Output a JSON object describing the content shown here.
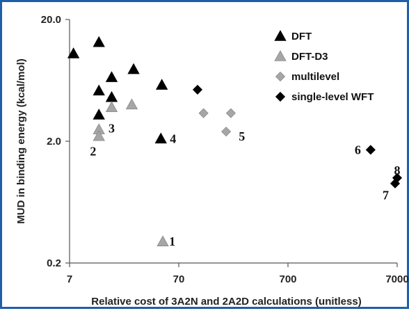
{
  "chart_data": {
    "type": "scatter",
    "xscale": "log",
    "yscale": "log",
    "xlim": [
      7,
      7000
    ],
    "ylim": [
      0.2,
      20.0
    ],
    "xticks": [
      "7",
      "70",
      "700",
      "7000"
    ],
    "yticks": [
      "0.2",
      "2.0",
      "20.0"
    ],
    "xlabel": "Relative cost of 3A2N and 2A2D calculations (unitless)",
    "ylabel": "MUD in binding energy (kcal/mol)",
    "grid": false,
    "legend_position": "top-right",
    "series": [
      {
        "name": "DFT",
        "marker": "triangle",
        "color": "#000000",
        "points": [
          {
            "x": 7.6,
            "y": 10.5
          },
          {
            "x": 13,
            "y": 13.0
          },
          {
            "x": 13,
            "y": 5.2
          },
          {
            "x": 13,
            "y": 3.3
          },
          {
            "x": 17,
            "y": 6.7
          },
          {
            "x": 17,
            "y": 4.6
          },
          {
            "x": 27,
            "y": 7.8
          },
          {
            "x": 49,
            "y": 5.8
          },
          {
            "x": 48,
            "y": 2.1
          }
        ]
      },
      {
        "name": "DFT-D3",
        "marker": "triangle",
        "color": "#a6a6a6",
        "points": [
          {
            "x": 13,
            "y": 2.5
          },
          {
            "x": 13,
            "y": 2.2
          },
          {
            "x": 17,
            "y": 3.8
          },
          {
            "x": 26,
            "y": 4.0
          },
          {
            "x": 50,
            "y": 0.3
          }
        ]
      },
      {
        "name": "multilevel",
        "marker": "diamond",
        "color": "#a6a6a6",
        "points": [
          {
            "x": 118,
            "y": 3.4
          },
          {
            "x": 190,
            "y": 2.4
          },
          {
            "x": 210,
            "y": 3.4
          }
        ]
      },
      {
        "name": "single-level WFT",
        "marker": "diamond",
        "color": "#000000",
        "points": [
          {
            "x": 104,
            "y": 5.3
          },
          {
            "x": 4000,
            "y": 1.7
          },
          {
            "x": 6700,
            "y": 0.9
          },
          {
            "x": 7000,
            "y": 1.0
          }
        ]
      }
    ],
    "annotations": [
      {
        "text": "1",
        "x": 61,
        "y": 0.3
      },
      {
        "text": "2",
        "x": 11.5,
        "y": 1.65
      },
      {
        "text": "3",
        "x": 17,
        "y": 2.55
      },
      {
        "text": "4",
        "x": 62,
        "y": 2.1
      },
      {
        "text": "5",
        "x": 265,
        "y": 2.2
      },
      {
        "text": "6",
        "x": 3050,
        "y": 1.7
      },
      {
        "text": "7",
        "x": 5500,
        "y": 0.72
      },
      {
        "text": "8",
        "x": 7000,
        "y": 1.15
      }
    ]
  }
}
